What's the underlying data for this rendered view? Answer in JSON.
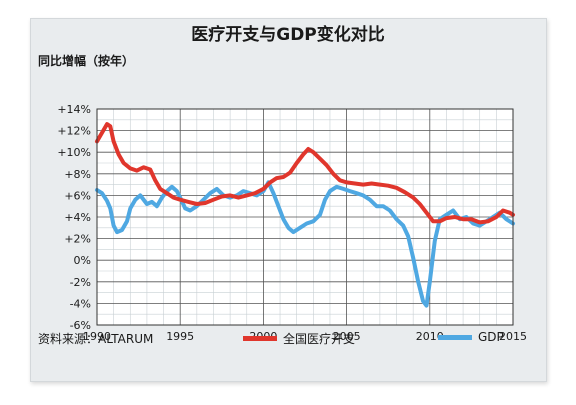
{
  "chart_data": {
    "type": "line",
    "title": "医疗开支与GDP变化对比",
    "ylabel": "同比增幅（按年）",
    "source": "资料来源：ALTARUM",
    "ylim": [
      -6,
      14
    ],
    "xlim": [
      1990,
      2015
    ],
    "yticks": [
      {
        "value": 14,
        "label": "+14%"
      },
      {
        "value": 12,
        "label": "+12%"
      },
      {
        "value": 10,
        "label": "+10%"
      },
      {
        "value": 8,
        "label": "+8%"
      },
      {
        "value": 6,
        "label": "+6%"
      },
      {
        "value": 4,
        "label": "+4%"
      },
      {
        "value": 2,
        "label": "+2%"
      },
      {
        "value": 0,
        "label": "0%"
      },
      {
        "value": -2,
        "label": "-2%"
      },
      {
        "value": -4,
        "label": "-4%"
      },
      {
        "value": -6,
        "label": "-6%"
      }
    ],
    "xticks": [
      {
        "value": 1990,
        "label": "1990"
      },
      {
        "value": 1995,
        "label": "1995"
      },
      {
        "value": 2000,
        "label": "2000"
      },
      {
        "value": 2005,
        "label": "2005"
      },
      {
        "value": 2010,
        "label": "2010"
      },
      {
        "value": 2015,
        "label": "2015"
      }
    ],
    "grid": true,
    "legend_position": "bottom",
    "series": [
      {
        "name": "全国医疗开支",
        "color": "#e0362c",
        "points": [
          [
            1990.0,
            11.0
          ],
          [
            1990.3,
            11.8
          ],
          [
            1990.6,
            12.6
          ],
          [
            1990.8,
            12.4
          ],
          [
            1991.0,
            11.0
          ],
          [
            1991.3,
            9.8
          ],
          [
            1991.6,
            9.0
          ],
          [
            1992.0,
            8.5
          ],
          [
            1992.4,
            8.3
          ],
          [
            1992.8,
            8.6
          ],
          [
            1993.2,
            8.4
          ],
          [
            1993.5,
            7.4
          ],
          [
            1993.8,
            6.6
          ],
          [
            1994.2,
            6.2
          ],
          [
            1994.6,
            5.8
          ],
          [
            1995.0,
            5.6
          ],
          [
            1995.5,
            5.4
          ],
          [
            1996.0,
            5.2
          ],
          [
            1996.5,
            5.3
          ],
          [
            1997.0,
            5.6
          ],
          [
            1997.5,
            5.9
          ],
          [
            1998.0,
            6.0
          ],
          [
            1998.5,
            5.8
          ],
          [
            1999.0,
            6.0
          ],
          [
            1999.5,
            6.2
          ],
          [
            2000.0,
            6.6
          ],
          [
            2000.4,
            7.2
          ],
          [
            2000.8,
            7.6
          ],
          [
            2001.2,
            7.7
          ],
          [
            2001.6,
            8.1
          ],
          [
            2002.0,
            9.0
          ],
          [
            2002.4,
            9.8
          ],
          [
            2002.7,
            10.3
          ],
          [
            2003.0,
            10.0
          ],
          [
            2003.4,
            9.4
          ],
          [
            2003.8,
            8.8
          ],
          [
            2004.2,
            8.0
          ],
          [
            2004.6,
            7.4
          ],
          [
            2005.0,
            7.2
          ],
          [
            2005.5,
            7.1
          ],
          [
            2006.0,
            7.0
          ],
          [
            2006.5,
            7.1
          ],
          [
            2007.0,
            7.0
          ],
          [
            2007.5,
            6.9
          ],
          [
            2008.0,
            6.7
          ],
          [
            2008.5,
            6.3
          ],
          [
            2009.0,
            5.8
          ],
          [
            2009.4,
            5.2
          ],
          [
            2009.8,
            4.4
          ],
          [
            2010.2,
            3.6
          ],
          [
            2010.6,
            3.6
          ],
          [
            2011.0,
            3.9
          ],
          [
            2011.5,
            4.0
          ],
          [
            2012.0,
            3.8
          ],
          [
            2012.5,
            3.8
          ],
          [
            2013.0,
            3.5
          ],
          [
            2013.5,
            3.6
          ],
          [
            2014.0,
            4.0
          ],
          [
            2014.4,
            4.6
          ],
          [
            2014.8,
            4.4
          ],
          [
            2015.0,
            4.2
          ]
        ]
      },
      {
        "name": "GDP",
        "color": "#4fa8e2",
        "points": [
          [
            1990.0,
            6.5
          ],
          [
            1990.3,
            6.2
          ],
          [
            1990.6,
            5.5
          ],
          [
            1990.8,
            4.8
          ],
          [
            1991.0,
            3.2
          ],
          [
            1991.2,
            2.6
          ],
          [
            1991.5,
            2.8
          ],
          [
            1991.8,
            3.6
          ],
          [
            1992.0,
            4.8
          ],
          [
            1992.3,
            5.6
          ],
          [
            1992.6,
            6.0
          ],
          [
            1993.0,
            5.2
          ],
          [
            1993.3,
            5.4
          ],
          [
            1993.6,
            5.0
          ],
          [
            1993.9,
            5.8
          ],
          [
            1994.2,
            6.4
          ],
          [
            1994.5,
            6.8
          ],
          [
            1994.8,
            6.4
          ],
          [
            1995.0,
            5.8
          ],
          [
            1995.3,
            4.8
          ],
          [
            1995.6,
            4.6
          ],
          [
            1996.0,
            5.0
          ],
          [
            1996.4,
            5.6
          ],
          [
            1996.8,
            6.2
          ],
          [
            1997.2,
            6.6
          ],
          [
            1997.6,
            6.0
          ],
          [
            1998.0,
            5.8
          ],
          [
            1998.4,
            6.0
          ],
          [
            1998.8,
            6.4
          ],
          [
            1999.2,
            6.2
          ],
          [
            1999.6,
            6.0
          ],
          [
            2000.0,
            6.4
          ],
          [
            2000.3,
            7.2
          ],
          [
            2000.6,
            6.2
          ],
          [
            2000.9,
            5.0
          ],
          [
            2001.2,
            3.8
          ],
          [
            2001.5,
            3.0
          ],
          [
            2001.8,
            2.6
          ],
          [
            2002.2,
            3.0
          ],
          [
            2002.6,
            3.4
          ],
          [
            2003.0,
            3.6
          ],
          [
            2003.4,
            4.2
          ],
          [
            2003.7,
            5.6
          ],
          [
            2004.0,
            6.4
          ],
          [
            2004.4,
            6.8
          ],
          [
            2004.8,
            6.6
          ],
          [
            2005.2,
            6.4
          ],
          [
            2005.6,
            6.2
          ],
          [
            2006.0,
            6.0
          ],
          [
            2006.4,
            5.6
          ],
          [
            2006.8,
            5.0
          ],
          [
            2007.2,
            5.0
          ],
          [
            2007.6,
            4.6
          ],
          [
            2008.0,
            3.8
          ],
          [
            2008.4,
            3.2
          ],
          [
            2008.7,
            2.2
          ],
          [
            2009.0,
            0.2
          ],
          [
            2009.3,
            -2.0
          ],
          [
            2009.6,
            -3.8
          ],
          [
            2009.8,
            -4.2
          ],
          [
            2010.0,
            -2.0
          ],
          [
            2010.3,
            1.8
          ],
          [
            2010.6,
            3.8
          ],
          [
            2011.0,
            4.2
          ],
          [
            2011.4,
            4.6
          ],
          [
            2011.8,
            3.8
          ],
          [
            2012.2,
            4.0
          ],
          [
            2012.6,
            3.4
          ],
          [
            2013.0,
            3.2
          ],
          [
            2013.4,
            3.6
          ],
          [
            2013.8,
            4.0
          ],
          [
            2014.2,
            4.4
          ],
          [
            2014.6,
            3.8
          ],
          [
            2015.0,
            3.4
          ]
        ]
      }
    ]
  }
}
